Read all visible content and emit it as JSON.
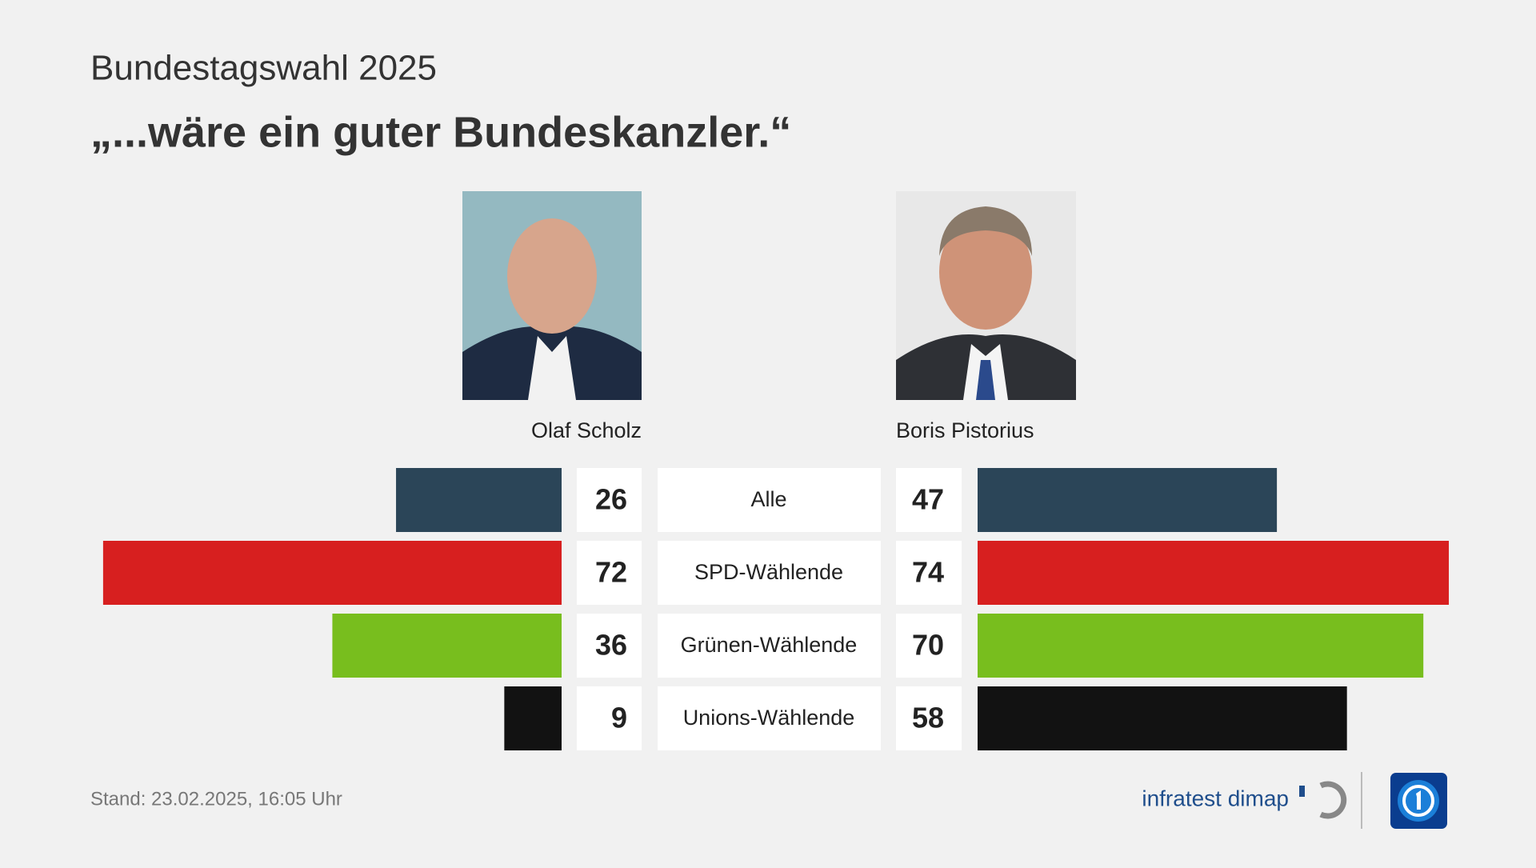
{
  "chart_data": {
    "type": "bar",
    "supertitle": "Bundestagswahl 2025",
    "title": "„...wäre ein guter Bundeskanzler.“",
    "categories": [
      "Alle",
      "SPD-Wählende",
      "Grünen-Wählende",
      "Unions-Wählende"
    ],
    "colors": [
      "#2b4558",
      "#d71f1f",
      "#78be1e",
      "#121212"
    ],
    "series": [
      {
        "name": "Olaf Scholz",
        "values": [
          26,
          72,
          36,
          9
        ]
      },
      {
        "name": "Boris Pistorius",
        "values": [
          47,
          74,
          70,
          58
        ]
      }
    ],
    "source": "Stand:  23.02.2025, 16:05 Uhr",
    "logo_text": "infratest dimap"
  }
}
